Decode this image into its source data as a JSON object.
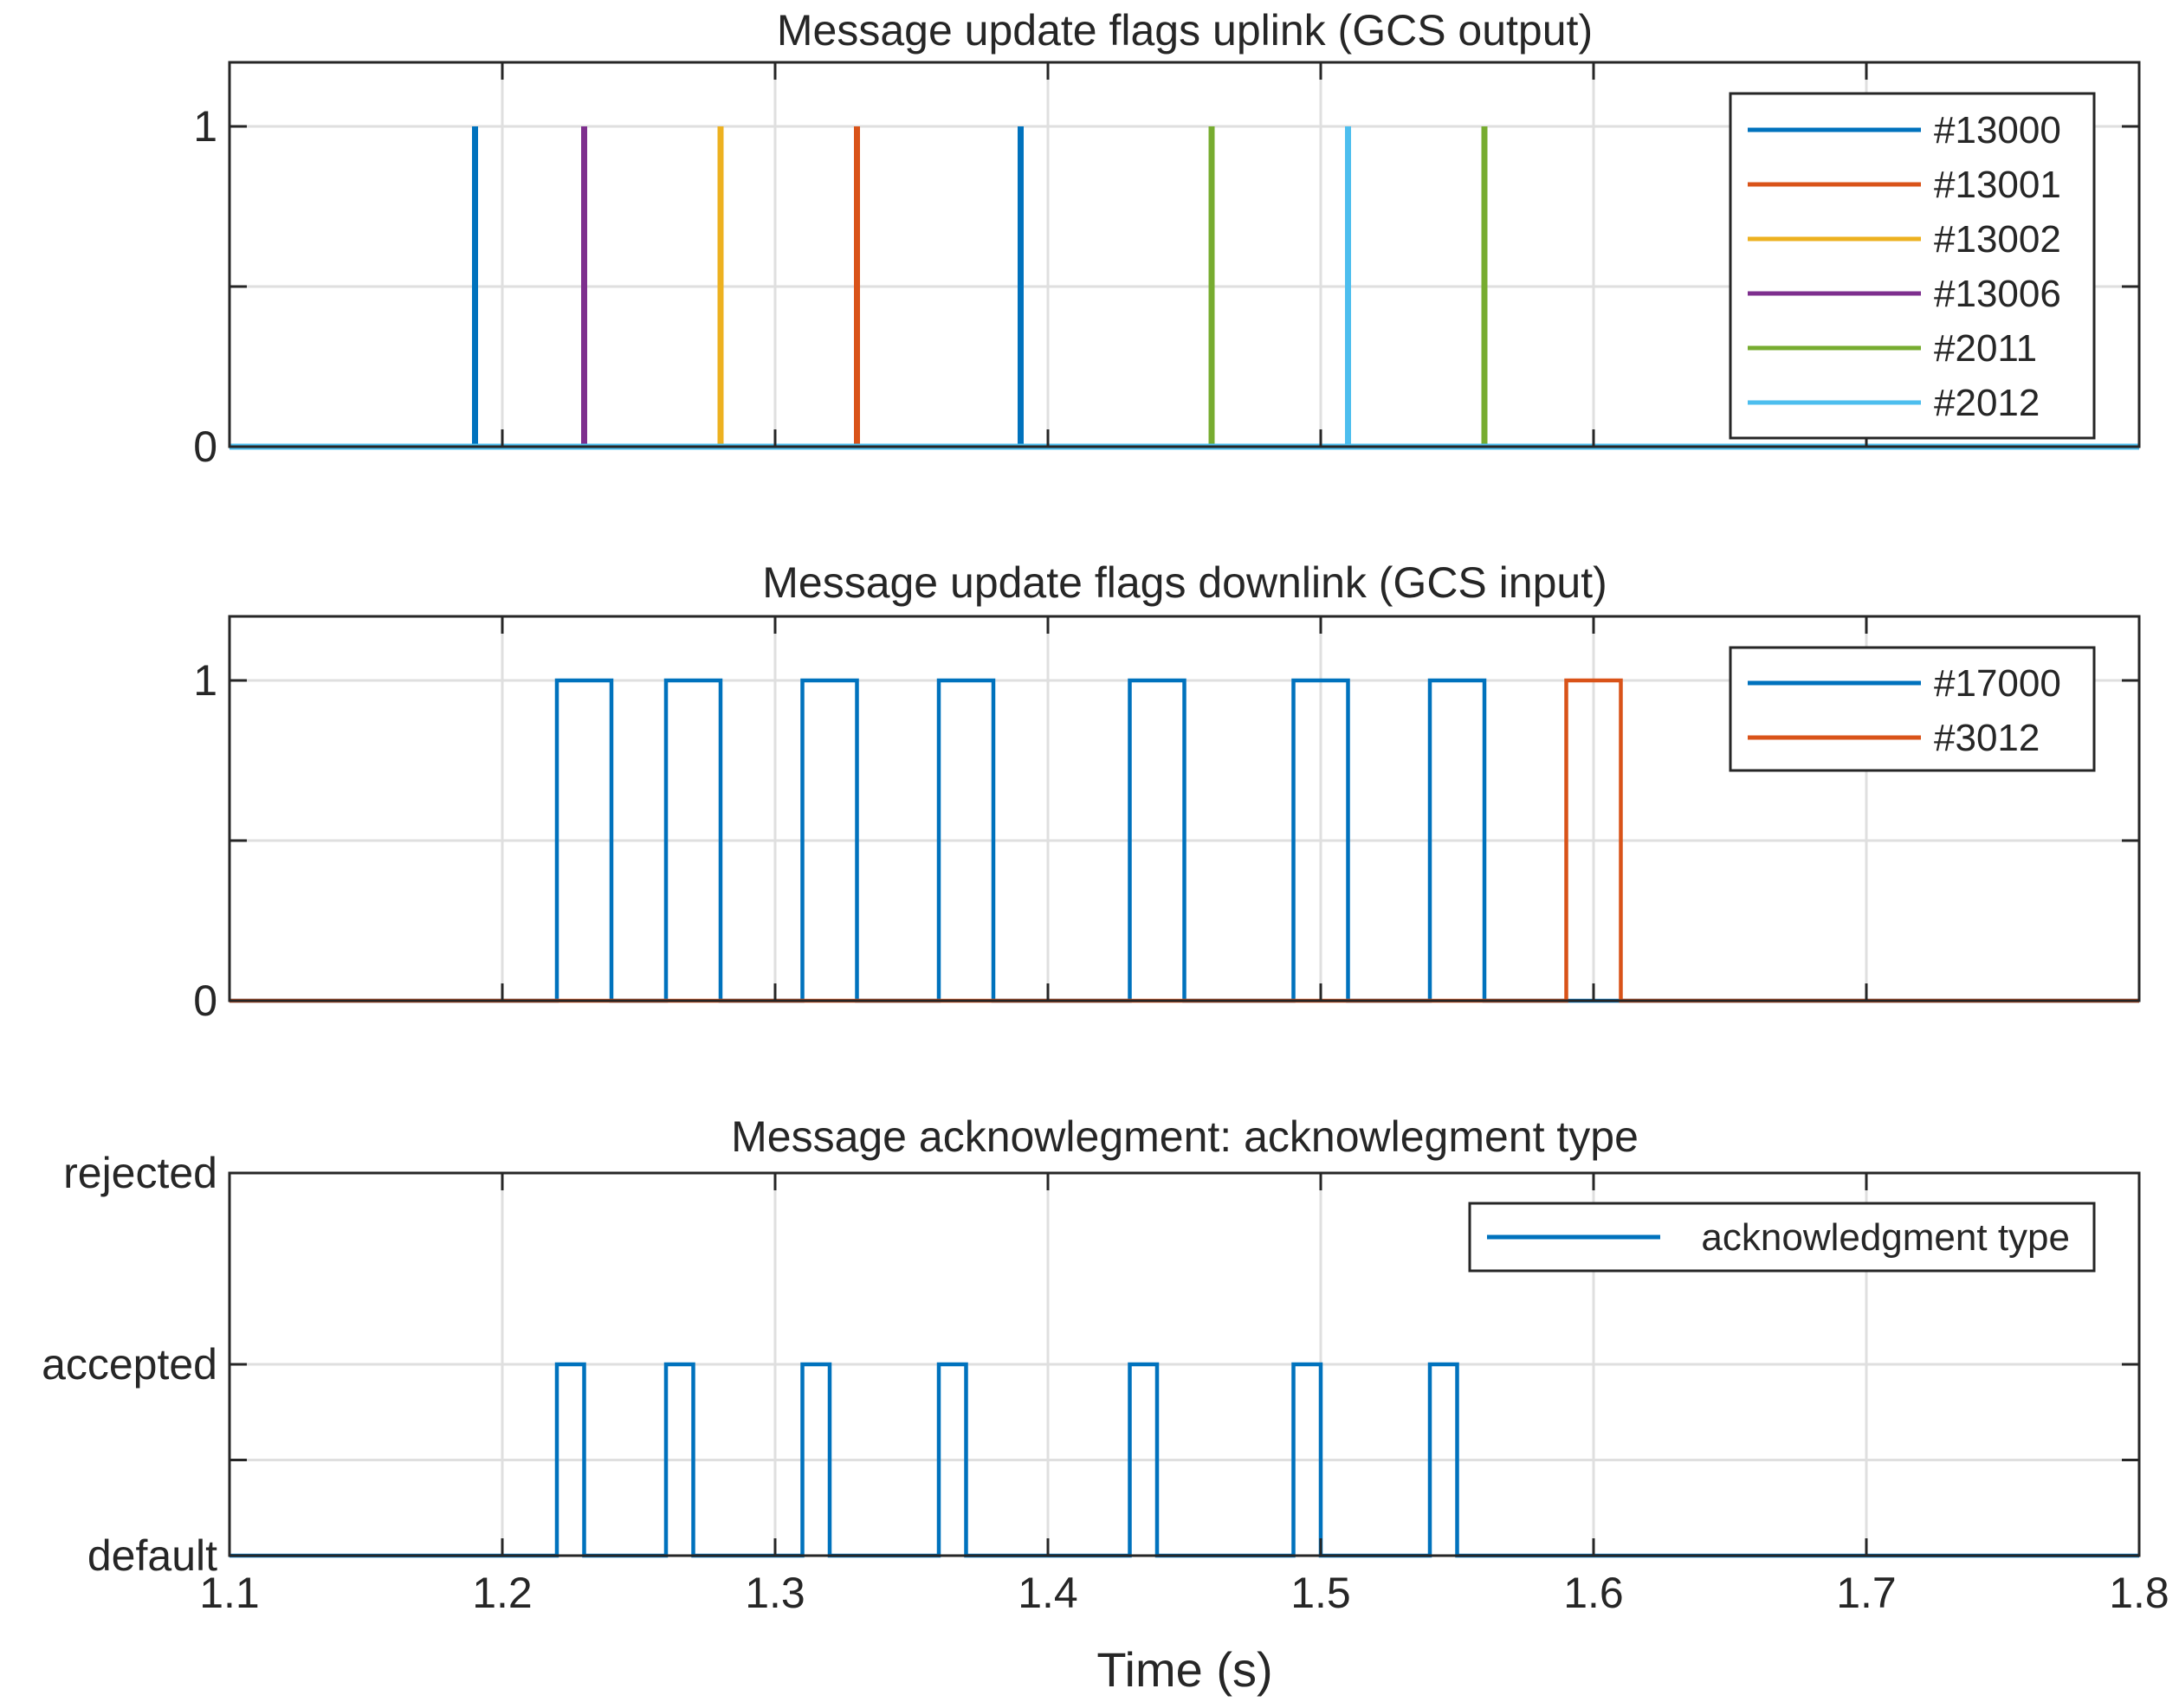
{
  "chart_data": [
    {
      "type": "line",
      "title": "Message update flags uplink (GCS output)",
      "xlabel": "",
      "ylabel": "",
      "xlim": [
        1.1,
        1.8
      ],
      "ylim": [
        0,
        1.2
      ],
      "yticks": [
        0,
        0.5,
        1
      ],
      "yticklabels": [
        "0",
        "",
        "1"
      ],
      "grid": true,
      "legend_position": "top-right",
      "baseline": 0,
      "series": [
        {
          "name": "#13000",
          "color": "#0072BD",
          "stroke": 7,
          "pulses": [
            [
              1.19,
              1.19
            ],
            [
              1.39,
              1.39
            ]
          ]
        },
        {
          "name": "#13001",
          "color": "#D95319",
          "stroke": 7,
          "pulses": [
            [
              1.33,
              1.33
            ]
          ]
        },
        {
          "name": "#13002",
          "color": "#EDB120",
          "stroke": 7,
          "pulses": [
            [
              1.28,
              1.28
            ]
          ]
        },
        {
          "name": "#13006",
          "color": "#7E2F8E",
          "stroke": 7,
          "pulses": [
            [
              1.23,
              1.23
            ]
          ]
        },
        {
          "name": "#2011",
          "color": "#77AC30",
          "stroke": 7,
          "pulses": [
            [
              1.46,
              1.46
            ],
            [
              1.56,
              1.56
            ]
          ]
        },
        {
          "name": "#2012",
          "color": "#4DBEEE",
          "stroke": 7,
          "pulses": [
            [
              1.51,
              1.51
            ]
          ]
        }
      ]
    },
    {
      "type": "line",
      "title": "Message update flags downlink (GCS input)",
      "xlabel": "",
      "ylabel": "",
      "xlim": [
        1.1,
        1.8
      ],
      "ylim": [
        0,
        1.2
      ],
      "yticks": [
        0,
        0.5,
        1
      ],
      "yticklabels": [
        "0",
        "",
        "1"
      ],
      "grid": true,
      "legend_position": "top-right",
      "baseline": 0,
      "series": [
        {
          "name": "#17000",
          "color": "#0072BD",
          "stroke": 4.5,
          "pulses": [
            [
              1.22,
              1.24
            ],
            [
              1.26,
              1.28
            ],
            [
              1.31,
              1.33
            ],
            [
              1.36,
              1.38
            ],
            [
              1.43,
              1.45
            ],
            [
              1.49,
              1.51
            ],
            [
              1.54,
              1.56
            ]
          ]
        },
        {
          "name": "#3012",
          "color": "#D95319",
          "stroke": 4.5,
          "pulses": [
            [
              1.59,
              1.61
            ]
          ]
        }
      ]
    },
    {
      "type": "line",
      "title": "Message acknowlegment: acknowlegment type",
      "xlabel": "Time (s)",
      "ylabel": "",
      "xlim": [
        1.1,
        1.8
      ],
      "ylim": [
        0,
        2
      ],
      "xticks": [
        1.1,
        1.2,
        1.3,
        1.4,
        1.5,
        1.6,
        1.7,
        1.8
      ],
      "xticklabels": [
        "1.1",
        "1.2",
        "1.3",
        "1.4",
        "1.5",
        "1.6",
        "1.7",
        "1.8"
      ],
      "yticks": [
        0,
        0.5,
        1,
        2
      ],
      "yticklabels": [
        "default",
        "",
        "accepted",
        "rejected"
      ],
      "grid": true,
      "legend_position": "top-right",
      "baseline": 0,
      "pulse_height": 1,
      "series": [
        {
          "name": "acknowledgment type",
          "color": "#0072BD",
          "stroke": 4.5,
          "pulses": [
            [
              1.22,
              1.23
            ],
            [
              1.26,
              1.27
            ],
            [
              1.31,
              1.32
            ],
            [
              1.36,
              1.37
            ],
            [
              1.43,
              1.44
            ],
            [
              1.49,
              1.5
            ],
            [
              1.54,
              1.55
            ]
          ]
        }
      ]
    }
  ]
}
